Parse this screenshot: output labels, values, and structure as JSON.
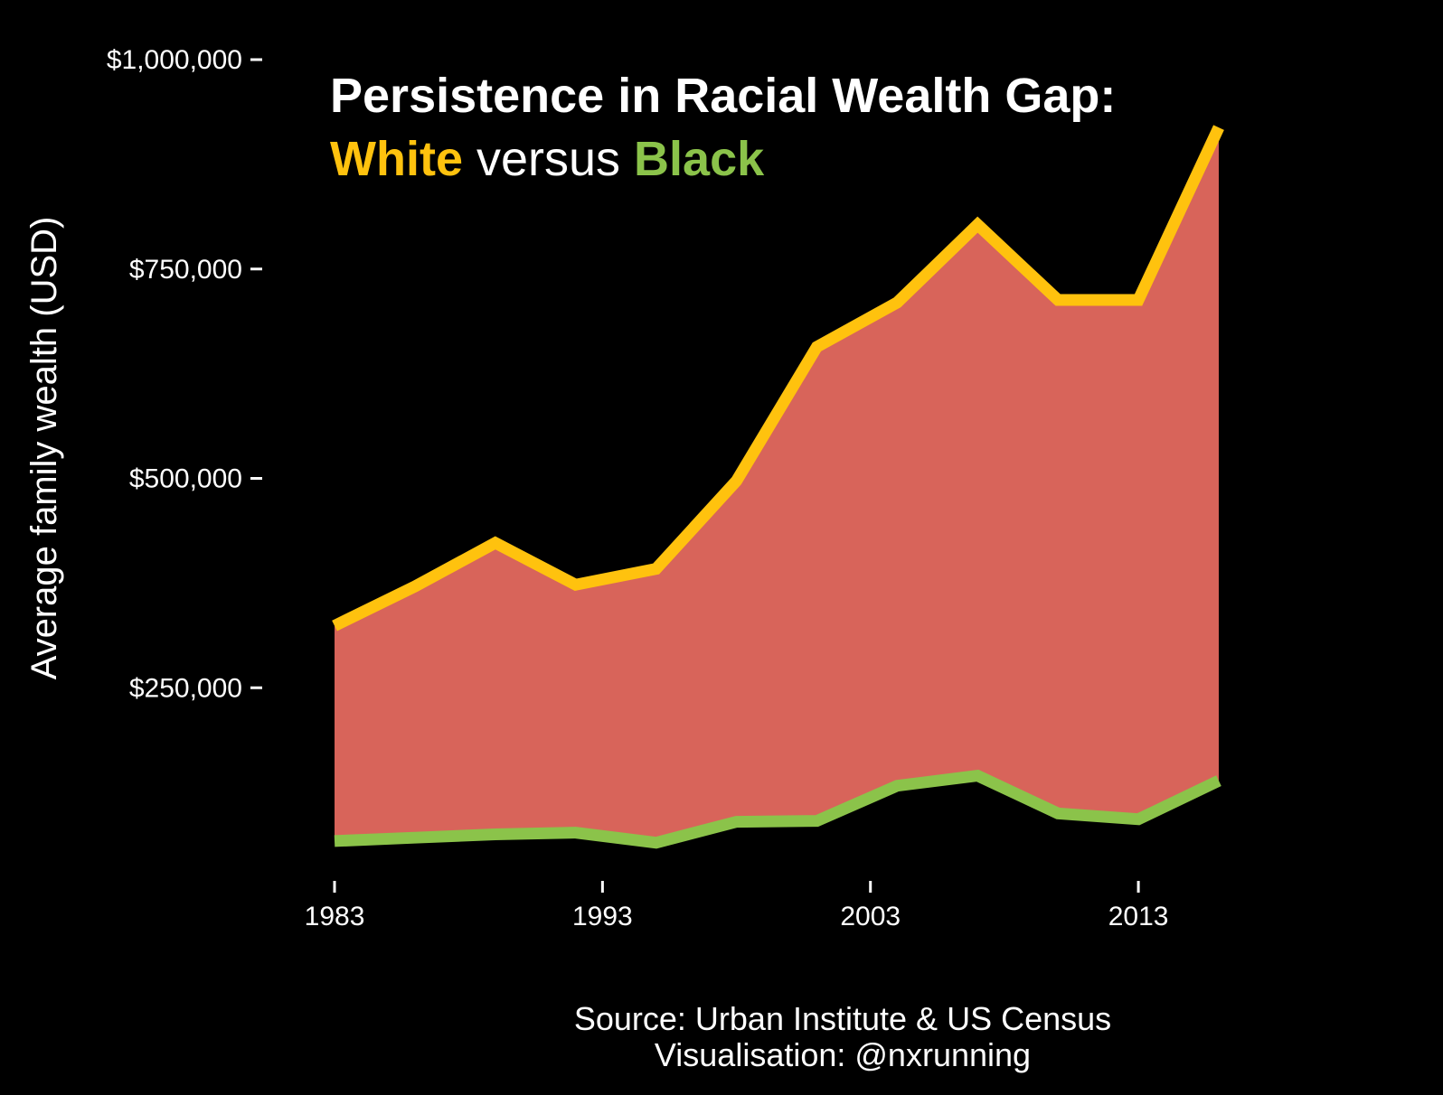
{
  "chart_data": {
    "type": "area",
    "title": "Persistence in Racial Wealth Gap:",
    "subtitle": {
      "parts": [
        {
          "text": "White",
          "color": "#FFC20E",
          "bold": true
        },
        {
          "text": " versus ",
          "color": "#FFFFFF",
          "bold": false
        },
        {
          "text": "Black",
          "color": "#8BC34A",
          "bold": true
        }
      ]
    },
    "ylabel": "Average family wealth (USD)",
    "xlabel": "",
    "caption": [
      "Source: Urban Institute & US Census",
      "Visualisation: @nxrunning"
    ],
    "x": [
      1983,
      1986,
      1989,
      1992,
      1995,
      1998,
      2001,
      2004,
      2007,
      2010,
      2013,
      2016
    ],
    "series": [
      {
        "name": "White",
        "color": "#FFC20E",
        "values": [
          324000,
          371000,
          423000,
          373000,
          392000,
          497000,
          657000,
          710000,
          803000,
          713000,
          713000,
          919000
        ]
      },
      {
        "name": "Black",
        "color": "#8BC34A",
        "values": [
          67000,
          71000,
          75000,
          77000,
          65000,
          90000,
          91000,
          133000,
          145000,
          100000,
          93000,
          139000
        ]
      }
    ],
    "fill_between_color": "#D8645A",
    "xticks": [
      1983,
      1993,
      2003,
      2013
    ],
    "xtick_labels": [
      "1983",
      "1993",
      "2003",
      "2013"
    ],
    "yticks": [
      250000,
      500000,
      750000,
      1000000
    ],
    "ytick_labels": [
      "$250,000",
      "$500,000",
      "$750,000",
      "$1,000,000"
    ],
    "xlim": [
      1980.3,
      2018.7
    ],
    "ylim": [
      0,
      1000000
    ],
    "grid": false,
    "legend": "none"
  }
}
